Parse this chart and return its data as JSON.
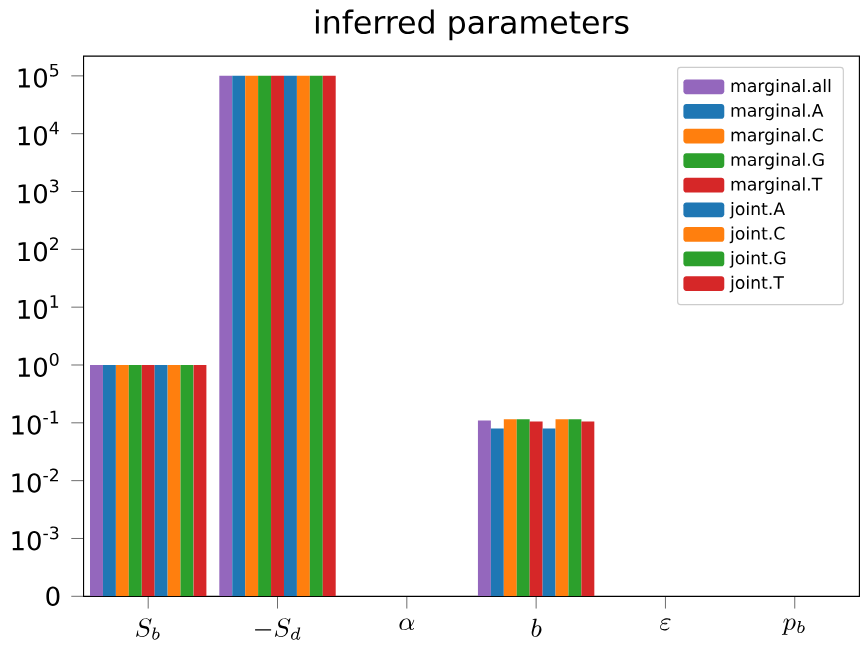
{
  "chart_data": {
    "type": "bar",
    "title": "inferred parameters",
    "categories": [
      "S_b",
      "-S_d",
      "\\alpha",
      "b",
      "\\varepsilon",
      "p_b"
    ],
    "log": "y",
    "ylim": [
      0,
      220000
    ],
    "yticks": [
      0,
      {
        "value": 0.001,
        "label": "10$^{-3}$"
      },
      {
        "value": 0.01,
        "label": "10$^{-2}$"
      },
      {
        "value": 0.1,
        "label": "10$^{-1}$"
      },
      {
        "value": 1,
        "label": "10$^{0}$"
      },
      {
        "value": 10,
        "label": "10$^{1}$"
      },
      {
        "value": 100,
        "label": "10$^{2}$"
      },
      {
        "value": 1000,
        "label": "10$^{3}$"
      },
      {
        "value": 10000,
        "label": "10$^{4}$"
      },
      {
        "value": 100000,
        "label": "10$^{5}$"
      }
    ],
    "legend": "top right",
    "grid": false,
    "series": [
      {
        "name": "marginal.all",
        "color": "#9467bd",
        "values": [
          1,
          100000,
          0,
          0.11,
          0,
          0
        ]
      },
      {
        "name": "marginal.A",
        "color": "#1f77b4",
        "values": [
          1,
          100000,
          0,
          0.08,
          0,
          0
        ]
      },
      {
        "name": "marginal.C",
        "color": "#ff7f0e",
        "values": [
          1,
          100000,
          0,
          0.115,
          0,
          0
        ]
      },
      {
        "name": "marginal.G",
        "color": "#2ca02c",
        "values": [
          1,
          100000,
          0,
          0.115,
          0,
          0
        ]
      },
      {
        "name": "marginal.T",
        "color": "#d62728",
        "values": [
          1,
          100000,
          0,
          0.105,
          0,
          0
        ]
      },
      {
        "name": "joint.A",
        "color": "#1f77b4",
        "values": [
          1,
          100000,
          0,
          0.08,
          0,
          0
        ]
      },
      {
        "name": "joint.C",
        "color": "#ff7f0e",
        "values": [
          1,
          100000,
          0,
          0.115,
          0,
          0
        ]
      },
      {
        "name": "joint.G",
        "color": "#2ca02c",
        "values": [
          1,
          100000,
          0,
          0.115,
          0,
          0
        ]
      },
      {
        "name": "joint.T",
        "color": "#d62728",
        "values": [
          1,
          100000,
          0,
          0.105,
          0,
          0
        ]
      }
    ]
  }
}
